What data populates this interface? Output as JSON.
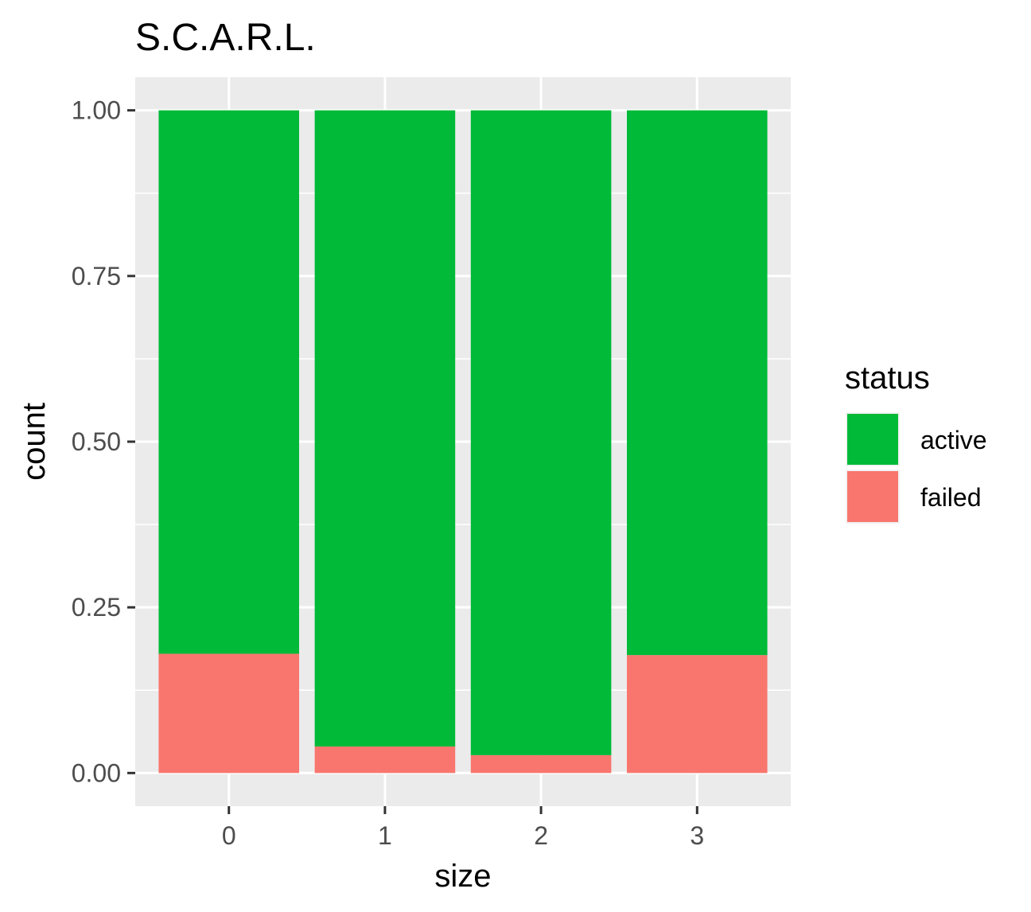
{
  "chart_data": {
    "type": "bar",
    "stacked": true,
    "title": "S.C.A.R.L.",
    "xlabel": "size",
    "ylabel": "count",
    "categories": [
      "0",
      "1",
      "2",
      "3"
    ],
    "ylim": [
      -0.05,
      1.05
    ],
    "yticks": [
      {
        "value": 0.0,
        "label": "0.00"
      },
      {
        "value": 0.25,
        "label": "0.25"
      },
      {
        "value": 0.5,
        "label": "0.50"
      },
      {
        "value": 0.75,
        "label": "0.75"
      },
      {
        "value": 1.0,
        "label": "1.00"
      }
    ],
    "series": [
      {
        "name": "failed",
        "color": "#F8766D",
        "values": [
          0.18,
          0.04,
          0.027,
          0.178
        ]
      },
      {
        "name": "active",
        "color": "#00BA38",
        "values": [
          0.82,
          0.96,
          0.973,
          0.822
        ]
      }
    ],
    "legend": {
      "title": "status",
      "position": "right",
      "items": [
        {
          "label": "active",
          "color": "#00BA38"
        },
        {
          "label": "failed",
          "color": "#F8766D"
        }
      ]
    },
    "panel_background": "#EBEBEB",
    "grid": true
  }
}
